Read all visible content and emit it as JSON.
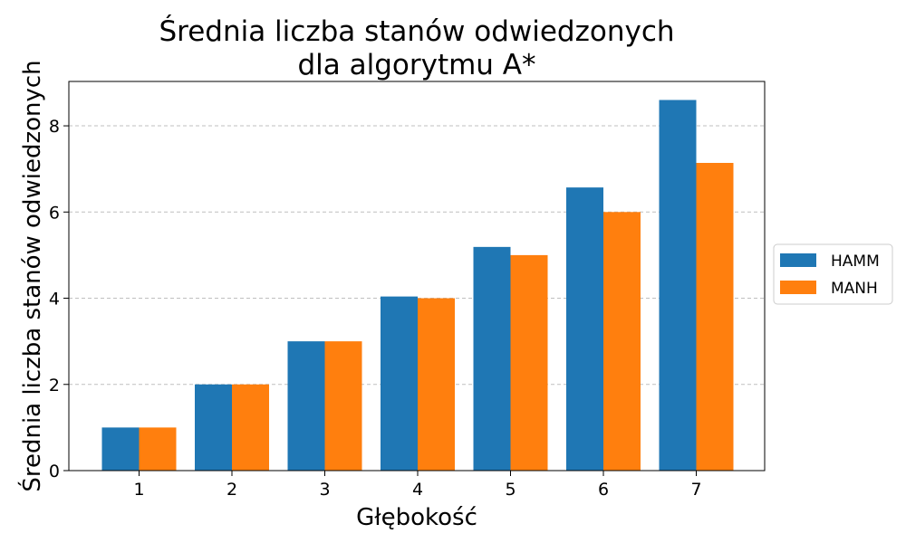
{
  "chart_data": {
    "type": "bar",
    "title_lines": [
      "Średnia liczba stanów odwiedzonych",
      "dla algorytmu A*"
    ],
    "xlabel": "Głębokość",
    "ylabel": "Średnia liczba stanów odwiedzonych",
    "categories": [
      "1",
      "2",
      "3",
      "4",
      "5",
      "6",
      "7"
    ],
    "series": [
      {
        "name": "HAMM",
        "color": "#1f77b4",
        "values": [
          1.0,
          2.0,
          3.0,
          4.04,
          5.19,
          6.57,
          8.6
        ]
      },
      {
        "name": "MANH",
        "color": "#ff7f0e",
        "values": [
          1.0,
          2.0,
          3.0,
          4.0,
          5.0,
          6.0,
          7.14
        ]
      }
    ],
    "ylim": [
      0,
      9.03
    ],
    "yticks": [
      0,
      2,
      4,
      6,
      8
    ],
    "grid": "y-dashed",
    "legend_position": "right"
  }
}
